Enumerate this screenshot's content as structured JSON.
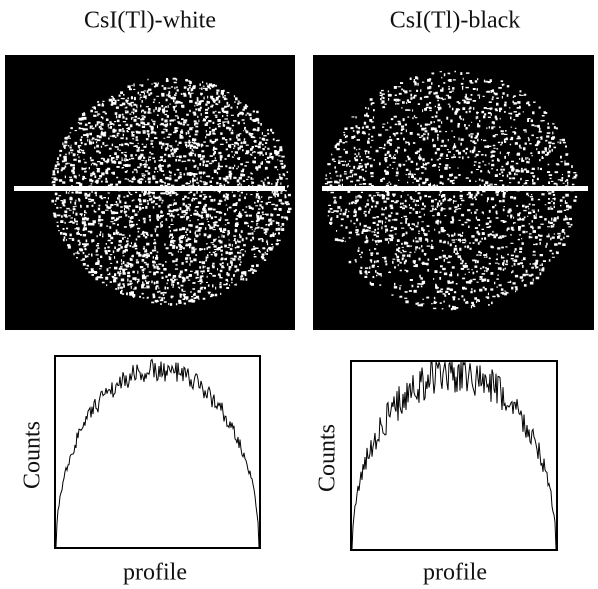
{
  "panels": [
    {
      "title": "CsI(Tl)-white",
      "y_label": "Counts",
      "x_label": "profile"
    },
    {
      "title": "CsI(Tl)-black",
      "y_label": "Counts",
      "x_label": "profile"
    }
  ]
}
